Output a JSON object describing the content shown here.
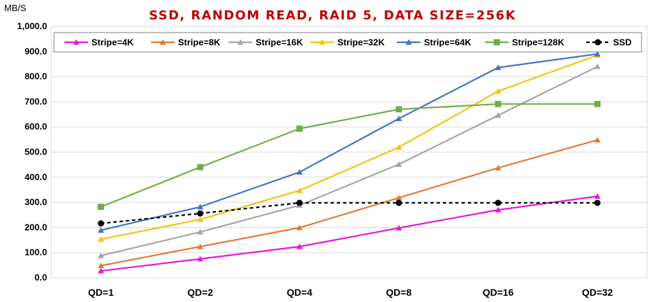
{
  "chart_data": {
    "type": "line",
    "title": "SSD, RANDOM READ, RAID 5, DATA SIZE=256K",
    "ylabel": "MB/S",
    "xlabel": "",
    "categories": [
      "QD=1",
      "QD=2",
      "QD=4",
      "QD=8",
      "QD=16",
      "QD=32"
    ],
    "ylim": [
      0,
      1000
    ],
    "ytick_step": 100,
    "ytick_labels": [
      "0.0",
      "100.0",
      "200.0",
      "300.0",
      "400.0",
      "500.0",
      "600.0",
      "700.0",
      "800.0",
      "900.0",
      "1,000.0"
    ],
    "grid": true,
    "legend_position": "top",
    "title_color": "#c00000",
    "series": [
      {
        "name": "Stripe=4K",
        "color": "#e619d9",
        "marker": "triangle",
        "dash": false,
        "values": [
          27,
          75,
          124,
          198,
          270,
          324
        ]
      },
      {
        "name": "Stripe=8K",
        "color": "#e07b39",
        "marker": "triangle",
        "dash": false,
        "values": [
          48,
          124,
          199,
          318,
          437,
          548
        ]
      },
      {
        "name": "Stripe=16K",
        "color": "#a5a5a5",
        "marker": "triangle",
        "dash": false,
        "values": [
          88,
          182,
          288,
          451,
          646,
          840
        ]
      },
      {
        "name": "Stripe=32K",
        "color": "#f2c40f",
        "marker": "triangle",
        "dash": false,
        "values": [
          153,
          232,
          347,
          519,
          742,
          885
        ]
      },
      {
        "name": "Stripe=64K",
        "color": "#4472c4",
        "marker": "triangle",
        "dash": false,
        "values": [
          189,
          282,
          420,
          633,
          836,
          890
        ]
      },
      {
        "name": "Stripe=128K",
        "color": "#70ad47",
        "marker": "square",
        "dash": false,
        "values": [
          282,
          440,
          593,
          670,
          691,
          691
        ]
      },
      {
        "name": "SSD",
        "color": "#000000",
        "marker": "circle",
        "dash": true,
        "values": [
          216,
          256,
          298,
          298,
          298,
          298
        ]
      }
    ]
  }
}
